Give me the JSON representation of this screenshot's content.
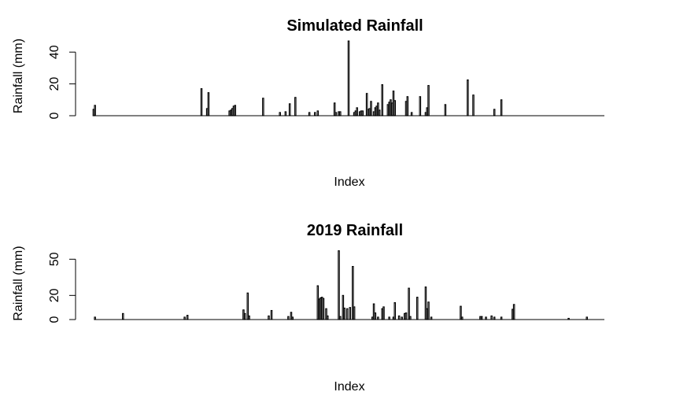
{
  "chart_data": [
    {
      "type": "bar",
      "title": "Simulated Rainfall",
      "xlabel": "Index",
      "ylabel": "Rainfall (mm)",
      "ylim": [
        0,
        50
      ],
      "y_ticks": [
        0,
        20,
        40
      ],
      "grid": false,
      "legend": "none",
      "n_points": 365,
      "series": [
        {
          "values": [
            [
              1,
              4
            ],
            [
              2,
              6.5
            ],
            [
              78,
              17
            ],
            [
              82,
              4.5
            ],
            [
              83,
              14.5
            ],
            [
              98,
              3
            ],
            [
              99,
              3.5
            ],
            [
              100,
              4.5
            ],
            [
              101,
              6
            ],
            [
              102,
              6.5
            ],
            [
              122,
              11
            ],
            [
              134,
              2
            ],
            [
              138,
              2.5
            ],
            [
              141,
              7.5
            ],
            [
              145,
              11.5
            ],
            [
              155,
              2
            ],
            [
              159,
              2
            ],
            [
              161,
              3
            ],
            [
              173,
              8
            ],
            [
              174,
              2
            ],
            [
              176,
              2.5
            ],
            [
              177,
              2.5
            ],
            [
              183,
              47
            ],
            [
              187,
              2
            ],
            [
              188,
              3
            ],
            [
              189,
              5
            ],
            [
              191,
              2.5
            ],
            [
              192,
              3
            ],
            [
              193,
              3
            ],
            [
              196,
              14
            ],
            [
              197,
              4
            ],
            [
              198,
              4.5
            ],
            [
              199,
              9
            ],
            [
              201,
              2.5
            ],
            [
              202,
              5
            ],
            [
              203,
              6
            ],
            [
              204,
              8
            ],
            [
              205,
              3.5
            ],
            [
              207,
              19.5
            ],
            [
              211,
              7
            ],
            [
              212,
              8.5
            ],
            [
              213,
              10
            ],
            [
              214,
              8
            ],
            [
              215,
              15.5
            ],
            [
              216,
              9.5
            ],
            [
              224,
              9
            ],
            [
              225,
              12
            ],
            [
              228,
              2
            ],
            [
              234,
              12
            ],
            [
              238,
              2
            ],
            [
              239,
              5
            ],
            [
              240,
              19
            ],
            [
              252,
              7
            ],
            [
              268,
              22.5
            ],
            [
              272,
              13
            ],
            [
              287,
              4
            ],
            [
              292,
              10
            ]
          ]
        }
      ]
    },
    {
      "type": "bar",
      "title": "2019 Rainfall",
      "xlabel": "Index",
      "ylabel": "Rainfall (mm)",
      "ylim": [
        0,
        60
      ],
      "y_ticks": [
        0,
        20,
        50
      ],
      "grid": false,
      "legend": "none",
      "n_points": 365,
      "series": [
        {
          "values": [
            [
              2,
              2
            ],
            [
              22,
              5
            ],
            [
              66,
              2
            ],
            [
              68,
              3.5
            ],
            [
              108,
              8
            ],
            [
              109,
              5
            ],
            [
              111,
              22
            ],
            [
              112,
              3
            ],
            [
              126,
              3
            ],
            [
              128,
              7.5
            ],
            [
              140,
              2.5
            ],
            [
              142,
              6
            ],
            [
              143,
              2
            ],
            [
              161,
              28
            ],
            [
              162,
              17
            ],
            [
              163,
              18
            ],
            [
              164,
              18.5
            ],
            [
              165,
              17.5
            ],
            [
              167,
              9
            ],
            [
              168,
              3
            ],
            [
              176,
              57
            ],
            [
              177,
              2.5
            ],
            [
              179,
              20
            ],
            [
              180,
              9.5
            ],
            [
              182,
              9
            ],
            [
              184,
              10
            ],
            [
              186,
              44
            ],
            [
              187,
              10.5
            ],
            [
              200,
              2
            ],
            [
              201,
              13
            ],
            [
              202,
              5.5
            ],
            [
              204,
              2
            ],
            [
              207,
              9
            ],
            [
              208,
              10.5
            ],
            [
              212,
              2
            ],
            [
              215,
              2
            ],
            [
              216,
              14
            ],
            [
              219,
              3
            ],
            [
              221,
              2
            ],
            [
              223,
              5
            ],
            [
              224,
              5.5
            ],
            [
              226,
              26
            ],
            [
              227,
              2.5
            ],
            [
              232,
              18.5
            ],
            [
              238,
              27
            ],
            [
              239,
              9
            ],
            [
              240,
              14.5
            ],
            [
              242,
              2
            ],
            [
              263,
              11
            ],
            [
              264,
              2
            ],
            [
              277,
              2.5
            ],
            [
              278,
              2.5
            ],
            [
              281,
              2
            ],
            [
              285,
              3
            ],
            [
              287,
              2
            ],
            [
              292,
              2
            ],
            [
              300,
              8.5
            ],
            [
              301,
              12.5
            ],
            [
              340,
              1
            ],
            [
              353,
              2
            ]
          ]
        }
      ]
    }
  ]
}
